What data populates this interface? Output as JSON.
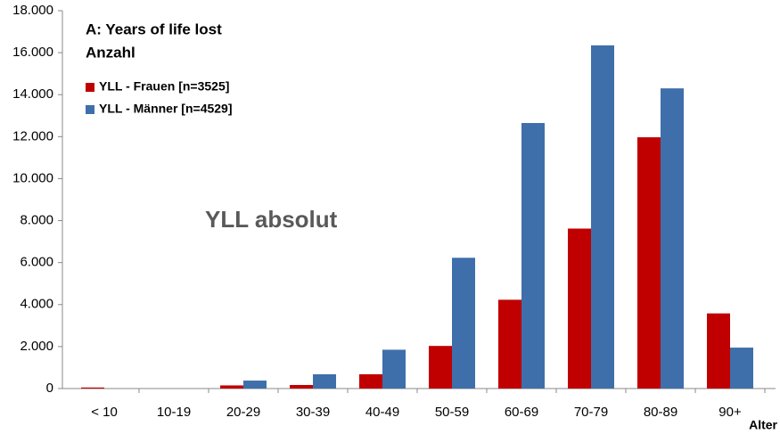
{
  "chart_data": {
    "type": "bar",
    "title": "A: Years of life lost",
    "subtitle": "Anzahl",
    "annotation": "YLL absolut",
    "x_label": "Alter",
    "categories": [
      "< 10",
      "10-19",
      "20-29",
      "30-39",
      "40-49",
      "50-59",
      "60-69",
      "70-79",
      "80-89",
      "90+"
    ],
    "series": [
      {
        "name": "YLL - Frauen [n=3525]",
        "color": "#c00000",
        "values": [
          50,
          0,
          150,
          170,
          680,
          2030,
          4230,
          7620,
          11970,
          3580
        ]
      },
      {
        "name": "YLL - Männer [n=4529]",
        "color": "#3f6faa",
        "values": [
          0,
          0,
          380,
          680,
          1850,
          6230,
          12650,
          16350,
          14300,
          1950
        ]
      }
    ],
    "ylim": [
      0,
      18000
    ],
    "yticks": [
      0,
      {
        "value": 2000,
        "label": "2.000"
      },
      {
        "value": 4000,
        "label": "4.000"
      },
      {
        "value": 6000,
        "label": "6.000"
      },
      {
        "value": 8000,
        "label": "8.000"
      },
      {
        "value": 10000,
        "label": "10.000"
      },
      {
        "value": 12000,
        "label": "12.000"
      },
      {
        "value": 14000,
        "label": "14.000"
      },
      {
        "value": 16000,
        "label": "16.000"
      },
      {
        "value": 18000,
        "label": "18.000"
      }
    ],
    "grid": false,
    "legend": "upper left"
  }
}
